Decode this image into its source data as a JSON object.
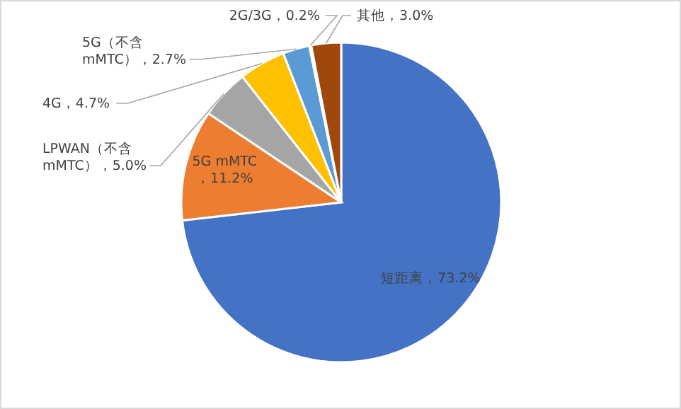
{
  "chart_data": {
    "type": "pie",
    "categories": [
      "短距离",
      "5G mMTC",
      "LPWAN（不含mMTC）",
      "4G",
      "5G（不含mMTC）",
      "2G/3G",
      "其他"
    ],
    "values": [
      73.2,
      11.2,
      5.0,
      4.7,
      2.7,
      0.2,
      3.0
    ],
    "value_labels": [
      "，73.2%",
      "，11.2%",
      "，5.0%",
      "，4.7%",
      "，2.7%",
      "，0.2%",
      "，3.0%"
    ],
    "colors": [
      "#4472c4",
      "#ed7d31",
      "#a5a5a5",
      "#ffc000",
      "#5b9bd5",
      "#70ad47",
      "#9e480e"
    ],
    "legend": false
  }
}
